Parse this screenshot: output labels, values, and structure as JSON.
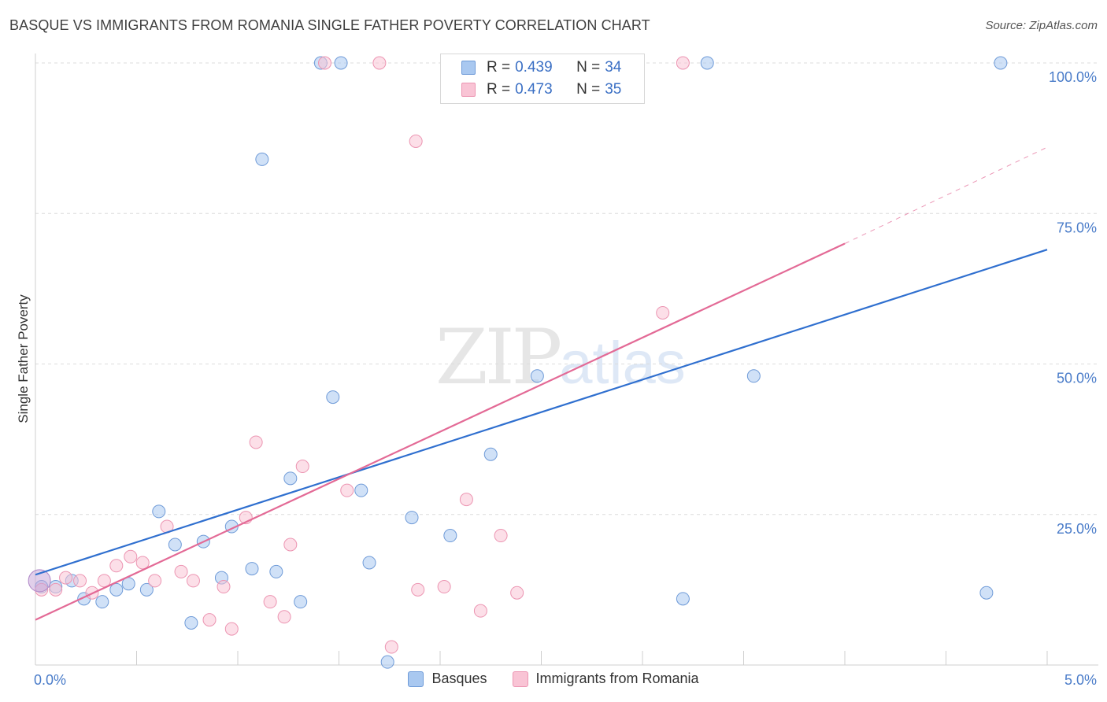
{
  "title": "BASQUE VS IMMIGRANTS FROM ROMANIA SINGLE FATHER POVERTY CORRELATION CHART",
  "source": "Source: ZipAtlas.com",
  "watermark": {
    "zip": "ZIP",
    "atlas": "atlas"
  },
  "legend": {
    "r_label": "R =",
    "n_label": "N =",
    "rows": [
      {
        "r": "0.439",
        "n": "34"
      },
      {
        "r": "0.473",
        "n": "35"
      }
    ]
  },
  "chart_data": {
    "type": "scatter",
    "title": "BASQUE VS IMMIGRANTS FROM ROMANIA SINGLE FATHER POVERTY CORRELATION CHART",
    "xlabel": "",
    "ylabel": "Single Father Poverty",
    "xlim": [
      0,
      5
    ],
    "ylim": [
      0,
      100
    ],
    "x_tick_labels": [
      "0.0%",
      "5.0%"
    ],
    "y_ticks": [
      25,
      50,
      75,
      100
    ],
    "y_tick_labels": [
      "25.0%",
      "50.0%",
      "75.0%",
      "100.0%"
    ],
    "grid": true,
    "legend_position": "top-center",
    "series": [
      {
        "name": "Basques",
        "color": "#a9c8f0",
        "stroke": "#6f9bd8",
        "line_color": "#2f6fcf",
        "r": 0.439,
        "n": 34,
        "trend": {
          "x0": 0,
          "y0": 15,
          "x1": 5,
          "y1": 69
        },
        "points": [
          [
            0.03,
            13
          ],
          [
            0.1,
            13
          ],
          [
            0.18,
            14
          ],
          [
            0.24,
            11
          ],
          [
            0.33,
            10.5
          ],
          [
            0.4,
            12.5
          ],
          [
            0.46,
            13.5
          ],
          [
            0.55,
            12.5
          ],
          [
            0.61,
            25.5
          ],
          [
            0.69,
            20
          ],
          [
            0.77,
            7
          ],
          [
            0.83,
            20.5
          ],
          [
            0.92,
            14.5
          ],
          [
            0.97,
            23
          ],
          [
            1.07,
            16
          ],
          [
            1.12,
            84
          ],
          [
            1.19,
            15.5
          ],
          [
            1.26,
            31
          ],
          [
            1.31,
            10.5
          ],
          [
            1.41,
            100
          ],
          [
            1.47,
            44.5
          ],
          [
            1.51,
            100
          ],
          [
            1.61,
            29
          ],
          [
            1.65,
            17
          ],
          [
            1.74,
            0.5
          ],
          [
            1.86,
            24.5
          ],
          [
            2.05,
            21.5
          ],
          [
            2.25,
            35
          ],
          [
            2.48,
            48
          ],
          [
            3.2,
            11
          ],
          [
            3.32,
            100
          ],
          [
            3.55,
            48
          ],
          [
            4.7,
            12
          ],
          [
            4.77,
            100
          ]
        ]
      },
      {
        "name": "Immigrants from Romania",
        "color": "#f9c4d5",
        "stroke": "#ec95b2",
        "line_color": "#e36a96",
        "r": 0.473,
        "n": 35,
        "trend": {
          "x0": 0,
          "y0": 7.5,
          "x1": 4,
          "y1": 70,
          "dash_x1": 5,
          "dash_y1": 86
        },
        "points": [
          [
            0.03,
            12.5
          ],
          [
            0.1,
            12.5
          ],
          [
            0.15,
            14.5
          ],
          [
            0.22,
            14
          ],
          [
            0.28,
            12
          ],
          [
            0.34,
            14
          ],
          [
            0.4,
            16.5
          ],
          [
            0.47,
            18
          ],
          [
            0.53,
            17
          ],
          [
            0.59,
            14
          ],
          [
            0.65,
            23
          ],
          [
            0.72,
            15.5
          ],
          [
            0.78,
            14
          ],
          [
            0.86,
            7.5
          ],
          [
            0.93,
            13
          ],
          [
            0.97,
            6
          ],
          [
            1.04,
            24.5
          ],
          [
            1.09,
            37
          ],
          [
            1.16,
            10.5
          ],
          [
            1.23,
            8
          ],
          [
            1.26,
            20
          ],
          [
            1.32,
            33
          ],
          [
            1.43,
            100
          ],
          [
            1.54,
            29
          ],
          [
            1.7,
            100
          ],
          [
            1.76,
            3
          ],
          [
            1.88,
            87
          ],
          [
            1.89,
            12.5
          ],
          [
            2.02,
            13
          ],
          [
            2.13,
            27.5
          ],
          [
            2.2,
            9
          ],
          [
            2.3,
            21.5
          ],
          [
            2.38,
            12
          ],
          [
            3.1,
            58.5
          ],
          [
            3.2,
            100
          ]
        ]
      }
    ]
  },
  "bottom_legend": [
    "Basques",
    "Immigrants from Romania"
  ]
}
